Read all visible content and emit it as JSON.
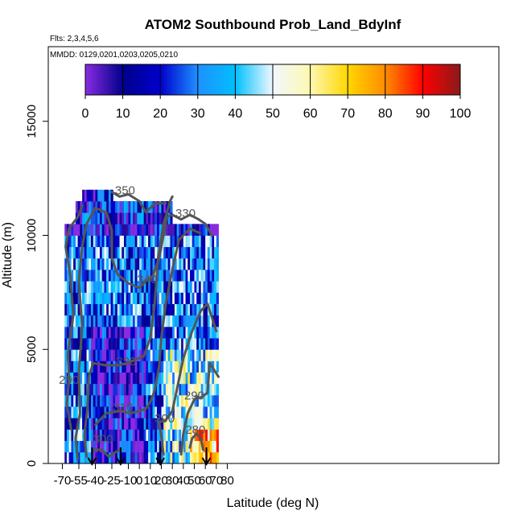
{
  "chart_data": {
    "type": "heatmap",
    "title": "ATOM2 Southbound Prob_Land_BdyInf",
    "subtitle_lines": [
      "Flts: 2,3,4,5,6",
      "MMDD: 0129,0201,0203,0205,0210"
    ],
    "xlabel": "Latitude (deg N)",
    "ylabel": "Altitude (m)",
    "xlim": [
      -70,
      85
    ],
    "ylim": [
      0,
      17500
    ],
    "x_ticks": [
      -70,
      -55,
      -40,
      -25,
      -10,
      0,
      10,
      20,
      30,
      40,
      50,
      60,
      70,
      80
    ],
    "y_ticks": [
      0,
      5000,
      10000,
      15000
    ],
    "colorbar": {
      "ticks": [
        0,
        10,
        20,
        30,
        40,
        50,
        60,
        70,
        80,
        90,
        100
      ],
      "range": [
        0,
        100
      ],
      "colors": [
        "#8a2be2",
        "#00008b",
        "#0000cd",
        "#1e90ff",
        "#00bfff",
        "#f0f8ff",
        "#fff8b0",
        "#ffd700",
        "#ff8c00",
        "#ff0000",
        "#8b1a1a"
      ]
    },
    "altitude_bins_m": [
      0,
      500,
      1000,
      1500,
      2000,
      2500,
      3000,
      3500,
      4000,
      4500,
      5000,
      5500,
      6000,
      6500,
      7000,
      7500,
      8000,
      8500,
      9000,
      9500,
      10000,
      10500,
      11000,
      11500,
      12000
    ],
    "data_extent": {
      "lat_min": -68,
      "lat_max": 72
    },
    "contours": [
      {
        "label": "280",
        "label_at": [
          51,
          1300
        ]
      },
      {
        "label": "290",
        "label_at": [
          -64,
          3500
        ]
      },
      {
        "label": "290",
        "label_at": [
          50,
          2800
        ]
      },
      {
        "label": "300",
        "label_at": [
          -33,
          900
        ]
      },
      {
        "label": "300",
        "label_at": [
          23,
          1800
        ]
      },
      {
        "label": "310",
        "label_at": [
          -15,
          2300
        ]
      },
      {
        "label": "320",
        "label_at": [
          -12,
          4300
        ]
      },
      {
        "label": "330",
        "label_at": [
          42,
          10800
        ]
      },
      {
        "label": "340",
        "label_at": [
          7,
          7900
        ]
      },
      {
        "label": "350",
        "label_at": [
          -13,
          11800
        ]
      }
    ],
    "arrows_lat": [
      -43,
      -17,
      19,
      61
    ]
  }
}
